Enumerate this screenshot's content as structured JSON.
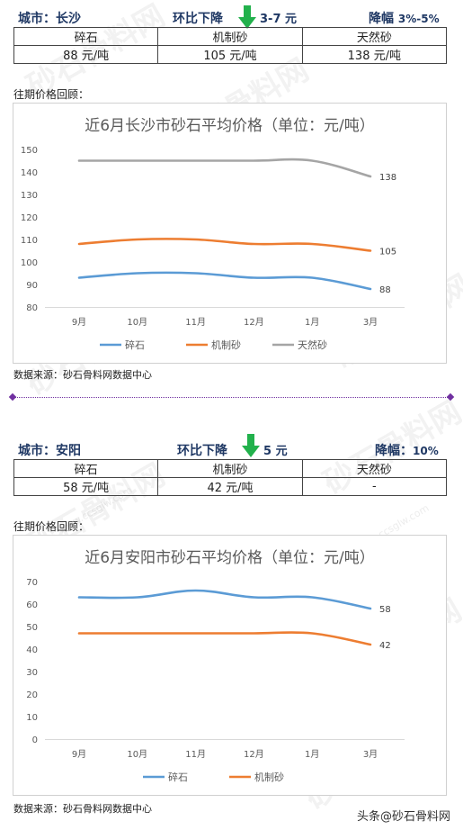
{
  "watermark": "砂石骨料网",
  "watermark_url": "www.ccsglw.com",
  "footer": "头条@砂石骨料网",
  "sections": [
    {
      "city": "城市：长沙",
      "change_label": "环比下降",
      "change_value": "3-7 元",
      "drop_label": "降幅",
      "drop_value": "3%-5%",
      "columns": [
        "碎石",
        "机制砂",
        "天然砂"
      ],
      "prices": [
        "88 元/吨",
        "105 元/吨",
        "138 元/吨"
      ],
      "review_label": "往期价格回顾：",
      "source": "数据来源：砂石骨料网数据中心"
    },
    {
      "city": "城市：安阳",
      "change_label": "环比下降",
      "change_value": "5 元",
      "drop_label": "降幅：",
      "drop_value": "10%",
      "columns": [
        "碎石",
        "机制砂",
        "天然砂"
      ],
      "prices": [
        "58 元/吨",
        "42 元/吨",
        "-"
      ],
      "review_label": "往期价格回顾：",
      "source": "数据来源：砂石骨料网数据中心"
    }
  ],
  "colors": {
    "crushed": "#5b9bd5",
    "manufactured": "#ed7d31",
    "natural": "#a5a5a5",
    "arrow": "#22b14c",
    "heading": "#1f3864"
  },
  "chart_data": [
    {
      "type": "line",
      "title": "近6月长沙市砂石平均价格（单位：元/吨）",
      "categories": [
        "9月",
        "10月",
        "11月",
        "12月",
        "1月",
        "3月"
      ],
      "ylim": [
        80,
        150
      ],
      "yticks": [
        80,
        90,
        100,
        110,
        120,
        130,
        140,
        150
      ],
      "grid": false,
      "legend": "bottom",
      "series": [
        {
          "name": "碎石",
          "values": [
            93,
            95,
            95,
            93,
            93,
            88
          ],
          "end_label": "88",
          "color": "#5b9bd5"
        },
        {
          "name": "机制砂",
          "values": [
            108,
            110,
            110,
            108,
            108,
            105
          ],
          "end_label": "105",
          "color": "#ed7d31"
        },
        {
          "name": "天然砂",
          "values": [
            145,
            145,
            145,
            145,
            145,
            138
          ],
          "end_label": "138",
          "color": "#a5a5a5"
        }
      ]
    },
    {
      "type": "line",
      "title": "近6月安阳市砂石平均价格（单位：元/吨）",
      "categories": [
        "9月",
        "10月",
        "11月",
        "12月",
        "1月",
        "3月"
      ],
      "ylim": [
        0,
        70
      ],
      "yticks": [
        0,
        10,
        20,
        30,
        40,
        50,
        60,
        70
      ],
      "grid": false,
      "legend": "bottom",
      "series": [
        {
          "name": "碎石",
          "values": [
            63,
            63,
            66,
            63,
            63,
            58
          ],
          "end_label": "58",
          "color": "#5b9bd5"
        },
        {
          "name": "机制砂",
          "values": [
            47,
            47,
            47,
            47,
            47,
            42
          ],
          "end_label": "42",
          "color": "#ed7d31"
        }
      ]
    }
  ]
}
